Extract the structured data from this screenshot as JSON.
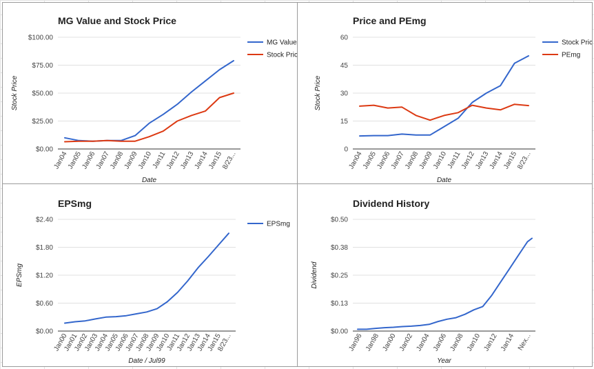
{
  "colors": {
    "blue": "#3366cc",
    "red": "#dc3912"
  },
  "chart_data": [
    {
      "id": "mg-value",
      "type": "line",
      "title": "MG Value and Stock Price",
      "xlabel": "Date",
      "ylabel": "Stock Price",
      "ylim": [
        0,
        100
      ],
      "yticks": [
        "$100.00",
        "$75.00",
        "$50.00",
        "$25.00",
        "$0.00"
      ],
      "categories": [
        "Jan04",
        "Jan05",
        "Jan06",
        "Jan07",
        "Jan08",
        "Jan09",
        "Jan10",
        "Jan11",
        "Jan12",
        "Jan13",
        "Jan14",
        "Jan15",
        "8/23..."
      ],
      "legend_position": "right",
      "series": [
        {
          "name": "MG Value",
          "legend_label": "MG Value",
          "color": "#3366cc",
          "values": [
            10,
            7.5,
            7,
            7.5,
            7.5,
            12,
            23,
            31,
            40,
            51,
            61,
            71,
            79
          ]
        },
        {
          "name": "Stock Price",
          "legend_label": "Stock Pric",
          "color": "#dc3912",
          "values": [
            6.5,
            7,
            7,
            7.5,
            7,
            7,
            11,
            16,
            25,
            30,
            34,
            46,
            50
          ]
        }
      ]
    },
    {
      "id": "price-pe",
      "type": "line",
      "title": "Price and PEmg",
      "xlabel": "Date",
      "ylabel": "Stock Price",
      "ylim": [
        0,
        60
      ],
      "yticks": [
        "60",
        "45",
        "30",
        "15",
        "0"
      ],
      "categories": [
        "Jan04",
        "Jan05",
        "Jan06",
        "Jan07",
        "Jan08",
        "Jan09",
        "Jan10",
        "Jan11",
        "Jan12",
        "Jan13",
        "Jan14",
        "Jan15",
        "8/23..."
      ],
      "legend_position": "right",
      "series": [
        {
          "name": "Stock Price",
          "legend_label": "Stock Pric",
          "color": "#3366cc",
          "values": [
            7,
            7.2,
            7.2,
            8,
            7.5,
            7.5,
            12,
            16.5,
            25,
            30,
            34,
            46,
            50
          ]
        },
        {
          "name": "PEmg",
          "legend_label": "PEmg",
          "color": "#dc3912",
          "values": [
            23,
            23.5,
            22,
            22.5,
            18,
            15.5,
            18,
            19.5,
            23.5,
            22,
            21,
            24,
            23.3
          ]
        }
      ]
    },
    {
      "id": "epsmg",
      "type": "line",
      "title": "EPSmg",
      "xlabel": "Date / Jul99",
      "ylabel": "EPSmg",
      "ylim": [
        0,
        2.4
      ],
      "yticks": [
        "$2.40",
        "$1.80",
        "$1.20",
        "$0.60",
        "$0.00"
      ],
      "categories": [
        "Jan00",
        "Jan01",
        "Jan02",
        "Jan03",
        "Jan04",
        "Jan05",
        "Jan06",
        "Jan07",
        "Jan08",
        "Jan09",
        "Jan10",
        "Jan11",
        "Jan12",
        "Jan13",
        "Jan14",
        "Jan15",
        "8/23..."
      ],
      "legend_position": "right",
      "series": [
        {
          "name": "EPSmg",
          "legend_label": "EPSmg",
          "color": "#3366cc",
          "values": [
            0.17,
            0.2,
            0.22,
            0.26,
            0.3,
            0.31,
            0.33,
            0.37,
            0.41,
            0.48,
            0.63,
            0.83,
            1.08,
            1.36,
            1.6,
            1.85,
            2.1
          ]
        }
      ]
    },
    {
      "id": "dividend",
      "type": "line",
      "title": "Dividend History",
      "xlabel": "Year",
      "ylabel": "Dividend",
      "ylim": [
        0,
        0.5
      ],
      "yticks": [
        "$0.50",
        "$0.38",
        "$0.25",
        "$0.13",
        "$0.00"
      ],
      "categories": [
        "Jan96",
        "Jan98",
        "Jan00",
        "Jan02",
        "Jan04",
        "Jan06",
        "Jan08",
        "Jan10",
        "Jan12",
        "Jan14",
        "Nex..."
      ],
      "x_values": [
        1996,
        1996.5,
        1997,
        1998,
        1999,
        2000,
        2001,
        2002,
        2003,
        2004,
        2005,
        2006,
        2007,
        2008,
        2009,
        2010,
        2011,
        2012,
        2013,
        2014,
        2015,
        2015.5
      ],
      "legend_position": "none",
      "series": [
        {
          "name": "Dividend",
          "color": "#3366cc",
          "values": [
            0.008,
            0.008,
            0.008,
            0.012,
            0.015,
            0.017,
            0.02,
            0.022,
            0.025,
            0.03,
            0.043,
            0.053,
            0.06,
            0.075,
            0.095,
            0.11,
            0.16,
            0.22,
            0.28,
            0.34,
            0.4,
            0.415
          ]
        }
      ]
    }
  ]
}
